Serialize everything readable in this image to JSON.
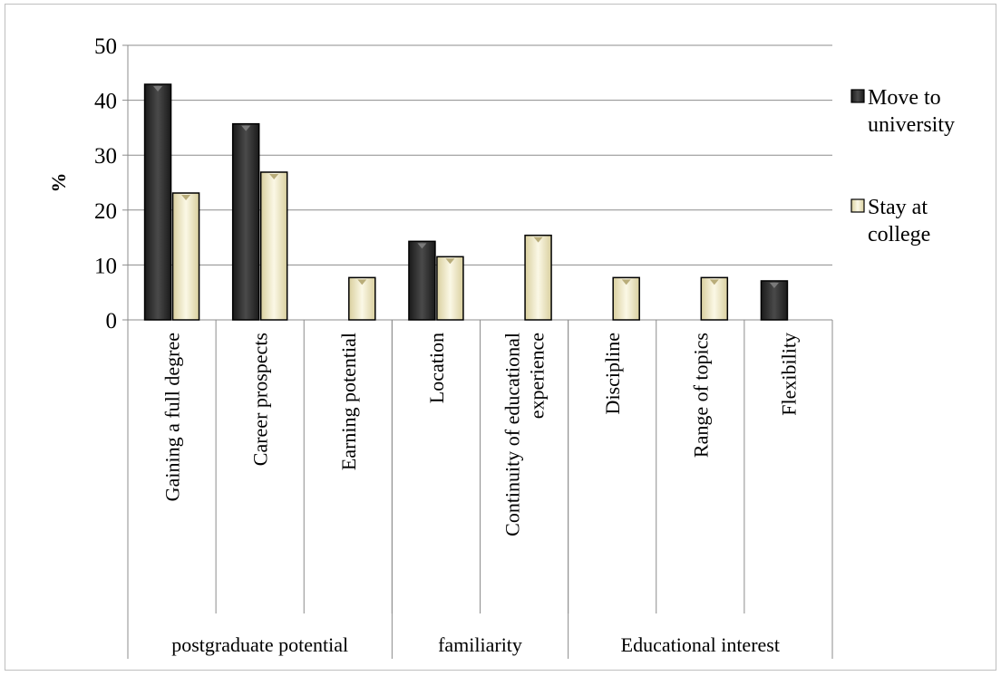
{
  "chart_data": {
    "type": "bar",
    "title": "",
    "xlabel": "",
    "ylabel": "%",
    "ylim": [
      0,
      50
    ],
    "yticks": [
      0,
      10,
      20,
      30,
      40,
      50
    ],
    "grid": true,
    "legend_position": "right",
    "groups": [
      {
        "label": "postgraduate potential",
        "categories": [
          "Gaining a full degree",
          "Career prospects",
          "Earning potential"
        ]
      },
      {
        "label": "familiarity",
        "categories": [
          "Location",
          "Continuity of educational experience"
        ]
      },
      {
        "label": "Educational interest",
        "categories": [
          "Discipline",
          "Range of topics",
          "Flexibility"
        ]
      }
    ],
    "categories": [
      "Gaining a full degree",
      "Career prospects",
      "Earning potential",
      "Location",
      "Continuity of educational experience",
      "Discipline",
      "Range of topics",
      "Flexibility"
    ],
    "category_lines": [
      [
        "Gaining a full degree"
      ],
      [
        "Career prospects"
      ],
      [
        "Earning potential"
      ],
      [
        "Location"
      ],
      [
        "Continuity of educational",
        "experience"
      ],
      [
        "Discipline"
      ],
      [
        "Range of topics"
      ],
      [
        "Flexibility"
      ]
    ],
    "series": [
      {
        "name": "Move to university",
        "legend_lines": [
          "Move to",
          "university"
        ],
        "color": "#262626",
        "values": [
          42.9,
          35.7,
          0,
          14.3,
          0,
          0,
          0,
          7.1
        ]
      },
      {
        "name": "Stay at college",
        "legend_lines": [
          "Stay at",
          "college"
        ],
        "color": "#e8e1bc",
        "values": [
          23.1,
          26.9,
          7.7,
          11.5,
          15.4,
          7.7,
          7.7,
          0
        ]
      }
    ]
  }
}
